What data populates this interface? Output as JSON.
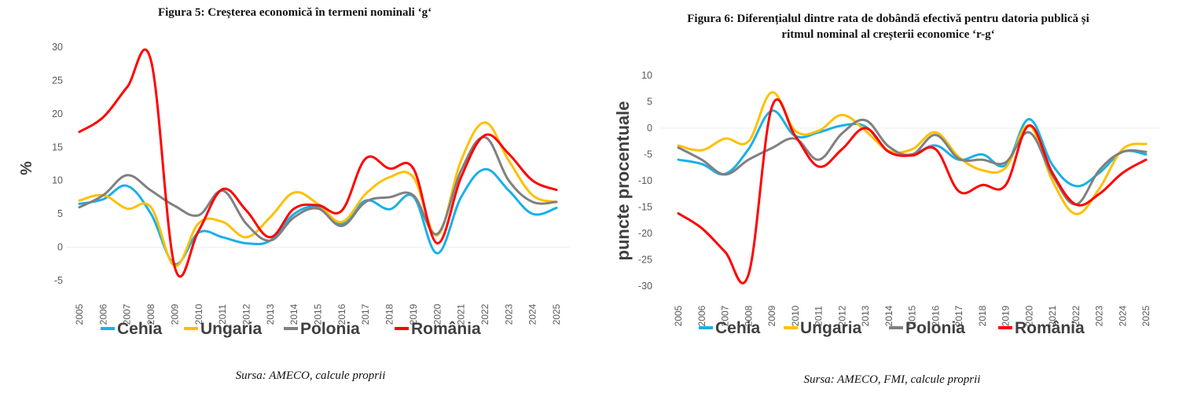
{
  "chart_data": [
    {
      "id": "left",
      "type": "line",
      "title": "Figura 5: Creșterea economică în termeni nominali ‘g‘",
      "source": "Sursa: AMECO, calcule proprii",
      "xlabel": "",
      "ylabel": "%",
      "ylim": [
        -5,
        30
      ],
      "yticks": [
        30,
        25,
        20,
        15,
        10,
        5,
        0,
        -5
      ],
      "grid": false,
      "zero_line": true,
      "legend_position": "bottom",
      "x": [
        "2005",
        "2006",
        "2007",
        "2008",
        "2009",
        "2010",
        "2011",
        "2012",
        "2013",
        "2014",
        "2015",
        "2016",
        "2017",
        "2018",
        "2019",
        "2020",
        "2021",
        "2022",
        "2023",
        "2024",
        "2025"
      ],
      "series": [
        {
          "name": "Cehia",
          "color": "#1ab0e8",
          "values": [
            6.5,
            7.2,
            9.2,
            5.0,
            -2.5,
            2.2,
            1.5,
            0.6,
            1.0,
            5.0,
            6.0,
            3.5,
            7.0,
            5.7,
            7.6,
            -0.9,
            7.5,
            11.7,
            8.5,
            5.0,
            5.9
          ]
        },
        {
          "name": "Ungaria",
          "color": "#ffc000",
          "values": [
            7.0,
            7.8,
            5.8,
            6.0,
            -2.8,
            3.6,
            3.8,
            1.5,
            4.5,
            8.2,
            6.5,
            3.8,
            8.0,
            10.5,
            10.5,
            1.8,
            13.0,
            18.7,
            13.0,
            7.8,
            6.8
          ]
        },
        {
          "name": "Polonia",
          "color": "#808080",
          "values": [
            6.0,
            7.8,
            10.8,
            8.5,
            6.2,
            4.8,
            8.5,
            3.5,
            1.0,
            4.5,
            5.8,
            3.2,
            6.8,
            7.5,
            7.8,
            2.0,
            11.5,
            16.5,
            10.0,
            6.8,
            6.8
          ]
        },
        {
          "name": "România",
          "color": "#ff0000",
          "values": [
            17.3,
            19.5,
            24.0,
            28.0,
            -3.0,
            2.5,
            8.7,
            5.5,
            1.5,
            5.8,
            6.3,
            5.5,
            13.3,
            11.8,
            11.8,
            0.6,
            10.5,
            16.8,
            14.0,
            10.0,
            8.6
          ]
        }
      ]
    },
    {
      "id": "right",
      "type": "line",
      "title": "Figura 6: Diferențialul dintre rata de dobândă efectivă pentru datoria publică și ritmul nominal al creșterii economice ‘r-g‘",
      "title_lines": [
        "Figura 6: Diferențialul dintre rata de dobândă efectivă pentru datoria publică și",
        "ritmul nominal al creșterii economice ‘r-g‘"
      ],
      "source": "Sursa: AMECO, FMI, calcule proprii",
      "xlabel": "",
      "ylabel": "puncte procentuale",
      "ylim": [
        -30,
        10
      ],
      "yticks": [
        10,
        5,
        0,
        -5,
        -10,
        -15,
        -20,
        -25,
        -30
      ],
      "grid": false,
      "zero_line": true,
      "legend_position": "bottom",
      "x": [
        "2005",
        "2006",
        "2007",
        "2008",
        "2009",
        "2010",
        "2011",
        "2012",
        "2013",
        "2014",
        "2015",
        "2016",
        "2017",
        "2018",
        "2019",
        "2020",
        "2021",
        "2022",
        "2023",
        "2024",
        "2025"
      ],
      "series": [
        {
          "name": "Cehia",
          "color": "#1ab0e8",
          "values": [
            -6.0,
            -6.8,
            -8.7,
            -4.0,
            3.3,
            -1.5,
            -0.8,
            0.5,
            0.3,
            -4.5,
            -5.0,
            -3.3,
            -6.0,
            -5.0,
            -7.0,
            1.7,
            -7.0,
            -11.0,
            -8.5,
            -4.5,
            -5.0
          ]
        },
        {
          "name": "Ungaria",
          "color": "#ffc000",
          "values": [
            -3.3,
            -4.2,
            -2.0,
            -2.5,
            6.8,
            -0.5,
            -0.5,
            2.5,
            -0.5,
            -4.3,
            -4.0,
            -0.8,
            -5.5,
            -8.0,
            -7.5,
            0.5,
            -10.0,
            -16.3,
            -11.5,
            -4.0,
            -3.0
          ]
        },
        {
          "name": "Polonia",
          "color": "#808080",
          "values": [
            -3.7,
            -6.0,
            -8.8,
            -6.0,
            -3.8,
            -2.0,
            -6.0,
            -1.0,
            1.5,
            -3.5,
            -5.0,
            -1.3,
            -5.8,
            -6.0,
            -6.5,
            -0.8,
            -9.0,
            -14.5,
            -8.0,
            -4.5,
            -4.5
          ]
        },
        {
          "name": "România",
          "color": "#ff0000",
          "values": [
            -16.2,
            -19.0,
            -23.5,
            -27.8,
            4.0,
            -1.5,
            -7.3,
            -4.0,
            0.0,
            -4.5,
            -5.2,
            -4.0,
            -12.0,
            -10.8,
            -10.8,
            0.5,
            -8.5,
            -14.5,
            -12.5,
            -8.5,
            -6.0
          ]
        }
      ]
    }
  ]
}
